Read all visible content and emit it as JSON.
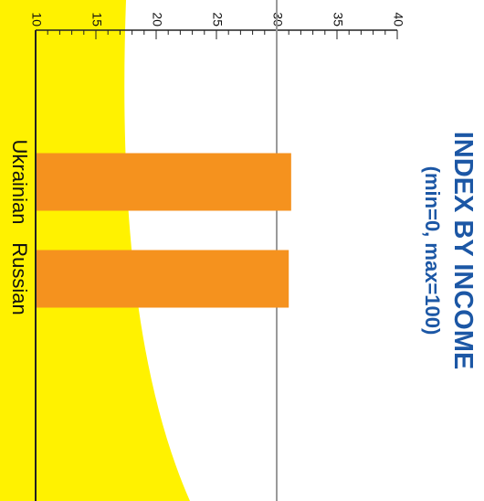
{
  "chart_data": {
    "type": "bar",
    "orientation": "horizontal",
    "title": "INDEX BY INCOME",
    "subtitle": "(min=0, max=100)",
    "categories": [
      "Ukrainian",
      "Russian"
    ],
    "values": [
      31.2,
      31.0
    ],
    "xlim": [
      10,
      40
    ],
    "x_ticks": [
      "10",
      "15",
      "20",
      "25",
      "30",
      "35",
      "40"
    ],
    "reference_line": 30,
    "colors": {
      "bar": "#f5921e",
      "title": "#1c57a5",
      "background_shape": "#fff200",
      "reference_line": "#9a9a9a",
      "axis": "#222222"
    }
  }
}
